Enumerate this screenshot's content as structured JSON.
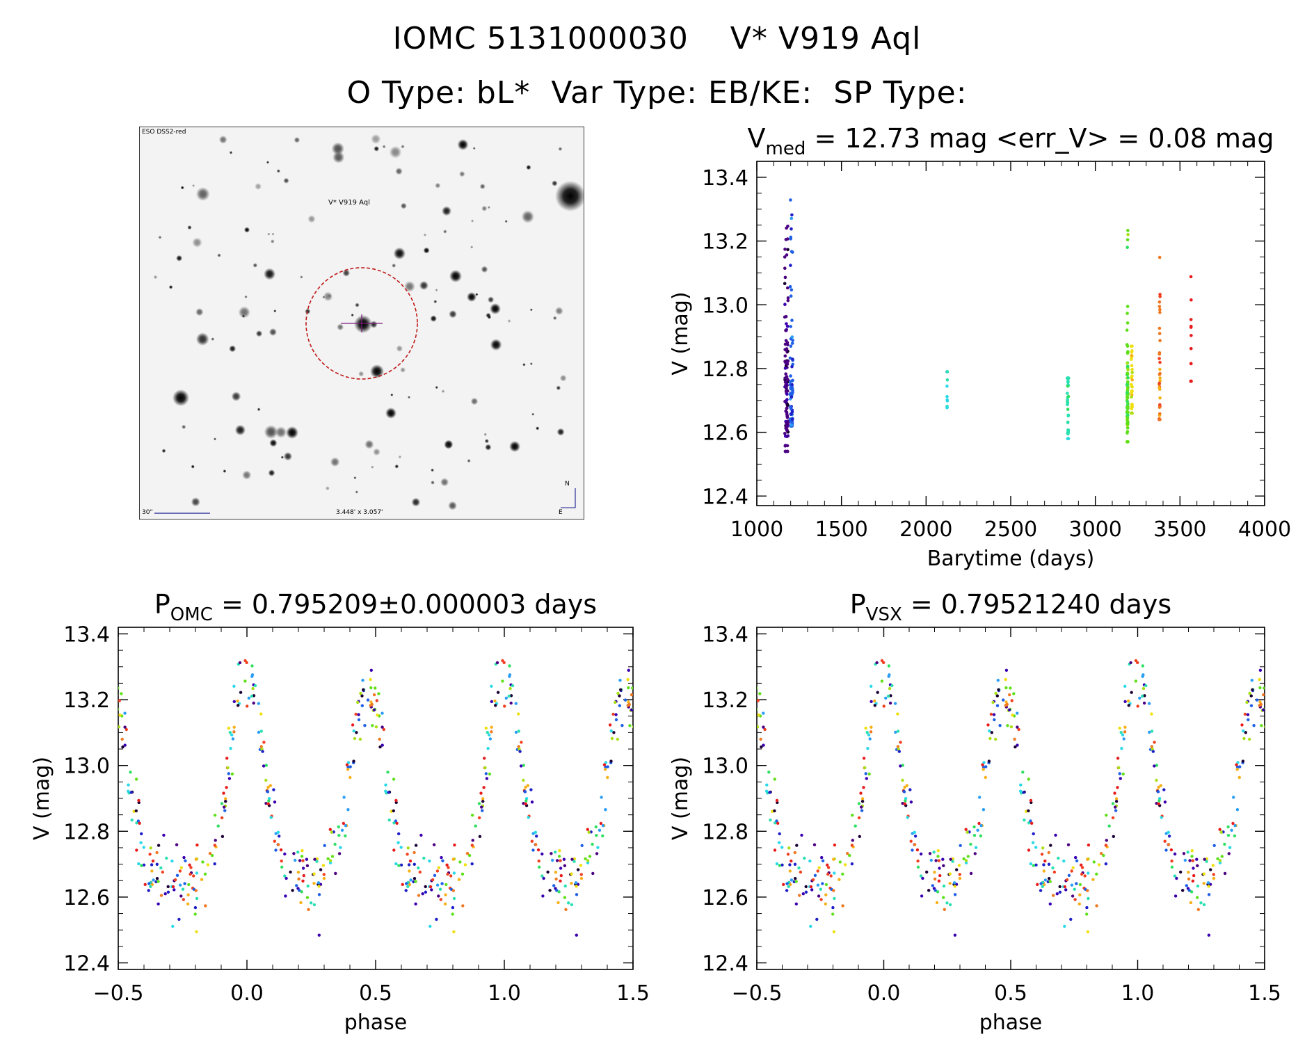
{
  "header": {
    "line1": "IOMC 5131000030    V* V919 Aql",
    "line2": "O Type: bL*  Var Type: EB/KE:  SP Type:"
  },
  "finder": {
    "survey_label": "ESO DSS2-red",
    "object_label": "V* V919 Aql",
    "scale_label": "30\"",
    "fov_label": "3.448' x 3.057'",
    "north_label": "N",
    "east_label": "E"
  },
  "colors": {
    "palette": [
      "#1a0033",
      "#4b0082",
      "#3a00b0",
      "#1e1ec8",
      "#1f5fe6",
      "#2a9df5",
      "#2ad9e8",
      "#28e0b0",
      "#2fe060",
      "#5fe01a",
      "#a8e014",
      "#f0e010",
      "#f8b018",
      "#f07820",
      "#f04020",
      "#e81c1c"
    ],
    "finder_circle": "#c01818",
    "finder_text": "#c01818",
    "finder_annotation": "#1a1a90"
  },
  "chart_data": [
    {
      "id": "lightcurve",
      "type": "scatter",
      "title_prefix": "V",
      "title_sub": "med",
      "title_rest": " = 12.73 mag <err_V> = 0.08 mag",
      "xlabel": "Barytime (days)",
      "ylabel": "V (mag)",
      "xlim": [
        1000,
        4000
      ],
      "ylim": [
        13.45,
        12.37
      ],
      "xticks": [
        "1000",
        "1500",
        "2000",
        "2500",
        "3000",
        "3500",
        "4000"
      ],
      "yticks": [
        "12.4",
        "12.6",
        "12.8",
        "13.0",
        "13.2",
        "13.4"
      ],
      "groups": [
        {
          "x_center": 1175,
          "x_spread": 20,
          "ymin": 12.54,
          "ymax": 13.26,
          "color_index": 1,
          "n": 110
        },
        {
          "x_center": 1205,
          "x_spread": 16,
          "ymin": 12.62,
          "ymax": 13.37,
          "color_index": 4,
          "n": 80
        },
        {
          "x_center": 2125,
          "x_spread": 3,
          "ymin": 12.64,
          "ymax": 12.79,
          "color_index": 6,
          "n": 12
        },
        {
          "x_center": 2838,
          "x_spread": 8,
          "ymin": 12.58,
          "ymax": 12.77,
          "color_index": 7,
          "n": 45
        },
        {
          "x_center": 3190,
          "x_spread": 6,
          "ymin": 12.57,
          "ymax": 13.25,
          "color_index": 9,
          "n": 80
        },
        {
          "x_center": 3215,
          "x_spread": 6,
          "ymin": 12.66,
          "ymax": 12.87,
          "color_index": 11,
          "n": 40
        },
        {
          "x_center": 3380,
          "x_spread": 5,
          "ymin": 12.64,
          "ymax": 13.19,
          "color_index": 13,
          "n": 45
        },
        {
          "x_center": 3565,
          "x_spread": 3,
          "ymin": 12.76,
          "ymax": 13.14,
          "color_index": 15,
          "n": 18
        }
      ]
    },
    {
      "id": "phase_omc",
      "type": "scatter",
      "title_prefix": "P",
      "title_sub": "OMC",
      "title_rest": " = 0.795209±0.000003 days",
      "xlabel": "phase",
      "ylabel": "V (mag)",
      "xlim": [
        -0.5,
        1.5
      ],
      "ylim": [
        13.42,
        12.38
      ],
      "xticks": [
        "−0.5",
        "0.0",
        "0.5",
        "1.0",
        "1.5"
      ],
      "yticks": [
        "12.4",
        "12.6",
        "12.8",
        "13.0",
        "13.2",
        "13.4"
      ],
      "light_curve": {
        "max_mag": 12.66,
        "primary_min": {
          "phase": 0.0,
          "depth": 13.28,
          "width": 0.09
        },
        "secondary_min": {
          "phase": 0.47,
          "depth": 13.22,
          "width": 0.09
        }
      },
      "n_points": 300
    },
    {
      "id": "phase_vsx",
      "type": "scatter",
      "title_prefix": "P",
      "title_sub": "VSX",
      "title_rest": " = 0.79521240 days",
      "xlabel": "phase",
      "ylabel": "V (mag)",
      "xlim": [
        -0.5,
        1.5
      ],
      "ylim": [
        13.42,
        12.38
      ],
      "xticks": [
        "−0.5",
        "0.0",
        "0.5",
        "1.0",
        "1.5"
      ],
      "yticks": [
        "12.4",
        "12.6",
        "12.8",
        "13.0",
        "13.2",
        "13.4"
      ],
      "light_curve": {
        "max_mag": 12.66,
        "primary_min": {
          "phase": 0.0,
          "depth": 13.28,
          "width": 0.09
        },
        "secondary_min": {
          "phase": 0.47,
          "depth": 13.22,
          "width": 0.09
        }
      },
      "n_points": 300
    }
  ]
}
